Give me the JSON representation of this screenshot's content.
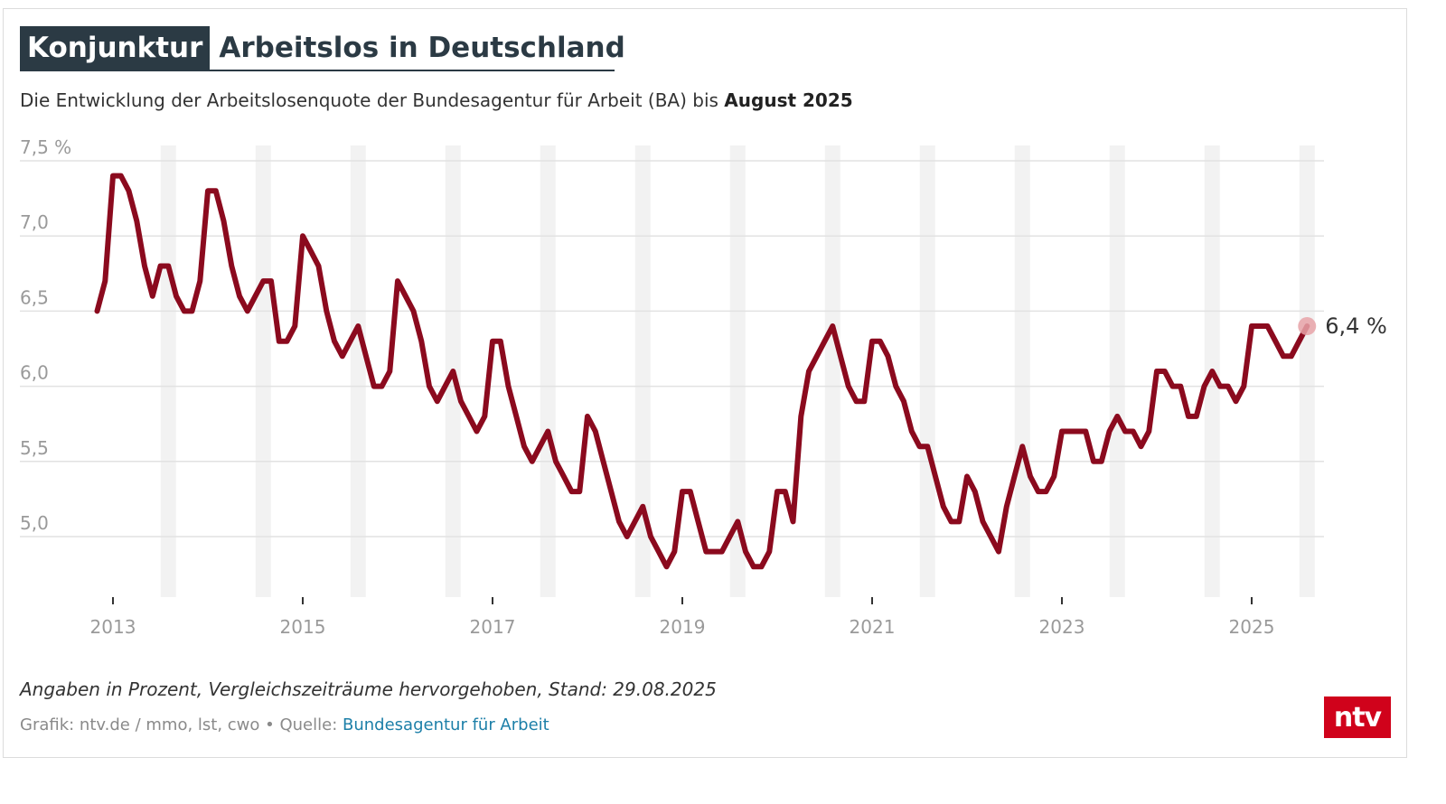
{
  "header": {
    "kicker": "Konjunktur",
    "title": "Arbeitslos in Deutschland",
    "subtitle_prefix": "Die Entwicklung der Arbeitslosenquote der Bundesagentur für Arbeit (BA) bis ",
    "subtitle_bold": "August 2025"
  },
  "footer": {
    "note": "Angaben in Prozent, Vergleichszeiträume hervorgehoben, Stand: 29.08.2025",
    "credit_prefix": "Grafik: ntv.de / mmo, lst, cwo • Quelle: ",
    "credit_source": "Bundesagentur für Arbeit",
    "logo": "ntv"
  },
  "colors": {
    "line": "#8b0a1e",
    "highlight_band": "#f2f2f2",
    "grid": "#e2e2e2",
    "axis_text": "#9a9a9a",
    "last_point": "#e8a3a8",
    "logo_bg": "#d0021b"
  },
  "chart_data": {
    "type": "line",
    "ylim": [
      4.6,
      7.5
    ],
    "yticks": [
      5.0,
      5.5,
      6.0,
      6.5,
      7.0,
      7.5
    ],
    "ytick_labels": [
      "5,0",
      "5,5",
      "6,0",
      "6,5",
      "7,0",
      "7,5 %"
    ],
    "xticks": [
      "2013",
      "2015",
      "2017",
      "2019",
      "2021",
      "2023",
      "2025"
    ],
    "highlighted_month": "August",
    "last_value_label": "6,4 %",
    "series": [
      {
        "x_start": "2012-11",
        "frequency": "monthly",
        "values": [
          6.5,
          6.7,
          7.4,
          7.4,
          7.3,
          7.1,
          6.8,
          6.6,
          6.8,
          6.8,
          6.6,
          6.5,
          6.5,
          6.7,
          7.3,
          7.3,
          7.1,
          6.8,
          6.6,
          6.5,
          6.6,
          6.7,
          6.7,
          6.3,
          6.3,
          6.4,
          7.0,
          6.9,
          6.8,
          6.5,
          6.3,
          6.2,
          6.3,
          6.4,
          6.2,
          6.0,
          6.0,
          6.1,
          6.7,
          6.6,
          6.5,
          6.3,
          6.0,
          5.9,
          6.0,
          6.1,
          5.9,
          5.8,
          5.7,
          5.8,
          6.3,
          6.3,
          6.0,
          5.8,
          5.6,
          5.5,
          5.6,
          5.7,
          5.5,
          5.4,
          5.3,
          5.3,
          5.8,
          5.7,
          5.5,
          5.3,
          5.1,
          5.0,
          5.1,
          5.2,
          5.0,
          4.9,
          4.8,
          4.9,
          5.3,
          5.3,
          5.1,
          4.9,
          4.9,
          4.9,
          5.0,
          5.1,
          4.9,
          4.8,
          4.8,
          4.9,
          5.3,
          5.3,
          5.1,
          5.8,
          6.1,
          6.2,
          6.3,
          6.4,
          6.2,
          6.0,
          5.9,
          5.9,
          6.3,
          6.3,
          6.2,
          6.0,
          5.9,
          5.7,
          5.6,
          5.6,
          5.4,
          5.2,
          5.1,
          5.1,
          5.4,
          5.3,
          5.1,
          5.0,
          4.9,
          5.2,
          5.4,
          5.6,
          5.4,
          5.3,
          5.3,
          5.4,
          5.7,
          5.7,
          5.7,
          5.7,
          5.5,
          5.5,
          5.7,
          5.8,
          5.7,
          5.7,
          5.6,
          5.7,
          6.1,
          6.1,
          6.0,
          6.0,
          5.8,
          5.8,
          6.0,
          6.1,
          6.0,
          6.0,
          5.9,
          6.0,
          6.4,
          6.4,
          6.4,
          6.3,
          6.2,
          6.2,
          6.3,
          6.4
        ]
      }
    ]
  }
}
